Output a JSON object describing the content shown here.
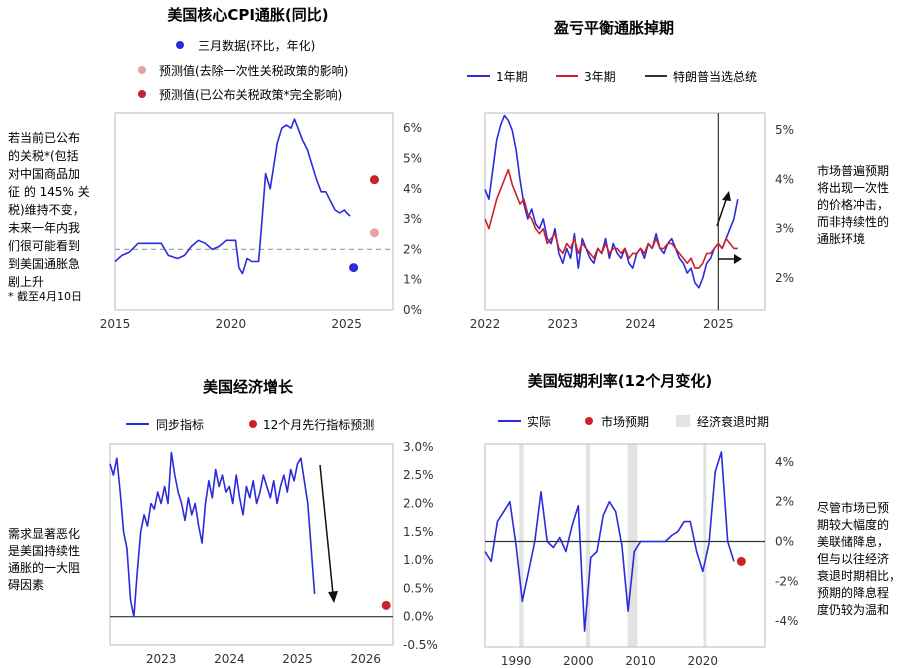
{
  "colors": {
    "blue": "#2b2bdb",
    "red": "#cc2229",
    "pink": "#e5a1a6",
    "gray": "#a6a6a6",
    "dark": "#333333",
    "shade": "#e3e3e3"
  },
  "chart_data": [
    {
      "type": "line",
      "title": "美国核心CPI通胀(同比)",
      "legend": [
        "三月数据(环比，年化)",
        "预测值(去除一次性关税政策的影响)",
        "预测值(已公布关税政策*完全影响)"
      ],
      "x_ticks": [
        "2015",
        "2020",
        "2025"
      ],
      "y_ticks": [
        "6%",
        "5%",
        "4%",
        "3%",
        "2%",
        "1%",
        "0%"
      ],
      "xlim": [
        2015,
        2027
      ],
      "ylim": [
        0,
        6.5
      ],
      "reference_line": 2.0,
      "series": [
        {
          "name": "美国核心CPI通胀(同比)",
          "x": [
            2015.0,
            2015.3,
            2015.6,
            2016.0,
            2016.4,
            2016.8,
            2017.0,
            2017.3,
            2017.7,
            2018.0,
            2018.3,
            2018.6,
            2018.9,
            2019.2,
            2019.5,
            2019.8,
            2020.0,
            2020.2,
            2020.35,
            2020.5,
            2020.7,
            2020.9,
            2021.0,
            2021.2,
            2021.35,
            2021.5,
            2021.7,
            2021.9,
            2022.0,
            2022.2,
            2022.4,
            2022.6,
            2022.75,
            2022.9,
            2023.1,
            2023.3,
            2023.5,
            2023.7,
            2023.9,
            2024.1,
            2024.3,
            2024.5,
            2024.7,
            2024.9,
            2025.0,
            2025.15
          ],
          "values": [
            1.6,
            1.8,
            1.9,
            2.2,
            2.2,
            2.2,
            2.2,
            1.8,
            1.7,
            1.8,
            2.1,
            2.3,
            2.2,
            2.0,
            2.1,
            2.3,
            2.3,
            2.3,
            1.4,
            1.2,
            1.7,
            1.6,
            1.6,
            1.6,
            3.0,
            4.5,
            4.0,
            5.0,
            5.5,
            6.0,
            6.1,
            6.0,
            6.3,
            6.0,
            5.6,
            5.3,
            4.8,
            4.3,
            3.9,
            3.9,
            3.6,
            3.3,
            3.2,
            3.3,
            3.2,
            3.1
          ]
        },
        {
          "name": "三月数据(环比，年化)",
          "x": [
            2025.3
          ],
          "values": [
            1.4
          ]
        },
        {
          "name": "预测值(去除一次性关税政策的影响)",
          "x": [
            2026.2
          ],
          "values": [
            2.55
          ]
        },
        {
          "name": "预测值(已公布关税政策*完全影响)",
          "x": [
            2026.2
          ],
          "values": [
            4.3
          ]
        }
      ]
    },
    {
      "type": "line",
      "title": "盈亏平衡通胀掉期",
      "legend": [
        "1年期",
        "3年期",
        "特朗普当选总统"
      ],
      "x_ticks": [
        "2022",
        "2023",
        "2024",
        "2025"
      ],
      "y_ticks": [
        "5%",
        "4%",
        "3%",
        "2%"
      ],
      "xlim": [
        2022,
        2025.6
      ],
      "ylim": [
        1.35,
        5.35
      ],
      "vline": 2025.0,
      "series": [
        {
          "name": "1年期",
          "x": [
            2022.0,
            2022.05,
            2022.1,
            2022.15,
            2022.2,
            2022.25,
            2022.3,
            2022.35,
            2022.4,
            2022.45,
            2022.5,
            2022.55,
            2022.6,
            2022.65,
            2022.7,
            2022.75,
            2022.8,
            2022.85,
            2022.9,
            2022.95,
            2023.0,
            2023.05,
            2023.1,
            2023.15,
            2023.2,
            2023.25,
            2023.3,
            2023.35,
            2023.4,
            2023.45,
            2023.5,
            2023.55,
            2023.6,
            2023.65,
            2023.7,
            2023.75,
            2023.8,
            2023.85,
            2023.9,
            2023.95,
            2024.0,
            2024.05,
            2024.1,
            2024.15,
            2024.2,
            2024.25,
            2024.3,
            2024.35,
            2024.4,
            2024.45,
            2024.5,
            2024.55,
            2024.6,
            2024.65,
            2024.7,
            2024.75,
            2024.8,
            2024.85,
            2024.9,
            2024.95,
            2025.0,
            2025.05,
            2025.1,
            2025.15,
            2025.2,
            2025.25
          ],
          "values": [
            3.8,
            3.6,
            4.2,
            4.8,
            5.1,
            5.3,
            5.2,
            5.0,
            4.6,
            4.0,
            3.5,
            3.2,
            3.4,
            3.1,
            3.0,
            3.2,
            2.8,
            2.7,
            3.0,
            2.5,
            2.3,
            2.6,
            2.4,
            2.9,
            2.2,
            2.8,
            2.6,
            2.4,
            2.3,
            2.6,
            2.5,
            2.8,
            2.4,
            2.7,
            2.5,
            2.4,
            2.6,
            2.3,
            2.2,
            2.5,
            2.6,
            2.4,
            2.7,
            2.6,
            2.9,
            2.6,
            2.5,
            2.7,
            2.8,
            2.6,
            2.4,
            2.3,
            2.1,
            2.2,
            1.9,
            1.8,
            2.0,
            2.3,
            2.4,
            2.6,
            2.7,
            2.6,
            2.8,
            3.0,
            3.2,
            3.6
          ]
        },
        {
          "name": "3年期",
          "x": [
            2022.0,
            2022.05,
            2022.1,
            2022.15,
            2022.2,
            2022.25,
            2022.3,
            2022.35,
            2022.4,
            2022.45,
            2022.5,
            2022.55,
            2022.6,
            2022.65,
            2022.7,
            2022.75,
            2022.8,
            2022.85,
            2022.9,
            2022.95,
            2023.0,
            2023.05,
            2023.1,
            2023.15,
            2023.2,
            2023.25,
            2023.3,
            2023.35,
            2023.4,
            2023.45,
            2023.5,
            2023.55,
            2023.6,
            2023.65,
            2023.7,
            2023.75,
            2023.8,
            2023.85,
            2023.9,
            2023.95,
            2024.0,
            2024.05,
            2024.1,
            2024.15,
            2024.2,
            2024.25,
            2024.3,
            2024.35,
            2024.4,
            2024.45,
            2024.5,
            2024.55,
            2024.6,
            2024.65,
            2024.7,
            2024.75,
            2024.8,
            2024.85,
            2024.9,
            2024.95,
            2025.0,
            2025.05,
            2025.1,
            2025.15,
            2025.2,
            2025.25
          ],
          "values": [
            3.2,
            3.0,
            3.3,
            3.6,
            3.8,
            4.0,
            4.2,
            3.9,
            3.7,
            3.5,
            3.6,
            3.3,
            3.2,
            3.0,
            2.9,
            3.0,
            2.7,
            2.8,
            2.9,
            2.6,
            2.5,
            2.7,
            2.6,
            2.8,
            2.5,
            2.7,
            2.6,
            2.5,
            2.4,
            2.6,
            2.5,
            2.7,
            2.5,
            2.6,
            2.6,
            2.5,
            2.6,
            2.4,
            2.5,
            2.5,
            2.6,
            2.5,
            2.7,
            2.6,
            2.8,
            2.6,
            2.6,
            2.7,
            2.7,
            2.6,
            2.5,
            2.4,
            2.3,
            2.4,
            2.2,
            2.2,
            2.3,
            2.5,
            2.5,
            2.6,
            2.7,
            2.6,
            2.8,
            2.7,
            2.6,
            2.6
          ]
        }
      ]
    },
    {
      "type": "line",
      "title": "美国经济增长",
      "legend": [
        "同步指标",
        "12个月先行指标预测"
      ],
      "x_ticks": [
        "2023",
        "2024",
        "2025",
        "2026"
      ],
      "y_ticks": [
        "3.0%",
        "2.5%",
        "2.0%",
        "1.5%",
        "1.0%",
        "0.5%",
        "0.0%",
        "-0.5%"
      ],
      "xlim": [
        2022.25,
        2026.4
      ],
      "ylim": [
        -0.5,
        3.05
      ],
      "reference_line": 0.0,
      "series": [
        {
          "name": "同步指标",
          "x": [
            2022.25,
            2022.3,
            2022.35,
            2022.4,
            2022.45,
            2022.5,
            2022.55,
            2022.6,
            2022.65,
            2022.7,
            2022.75,
            2022.8,
            2022.85,
            2022.9,
            2022.95,
            2023.0,
            2023.05,
            2023.1,
            2023.15,
            2023.2,
            2023.25,
            2023.3,
            2023.35,
            2023.4,
            2023.45,
            2023.5,
            2023.55,
            2023.6,
            2023.65,
            2023.7,
            2023.75,
            2023.8,
            2023.85,
            2023.9,
            2023.95,
            2024.0,
            2024.05,
            2024.1,
            2024.15,
            2024.2,
            2024.25,
            2024.3,
            2024.35,
            2024.4,
            2024.45,
            2024.5,
            2024.55,
            2024.6,
            2024.65,
            2024.7,
            2024.75,
            2024.8,
            2024.85,
            2024.9,
            2024.95,
            2025.0,
            2025.05,
            2025.1,
            2025.15,
            2025.2,
            2025.25
          ],
          "values": [
            2.7,
            2.5,
            2.8,
            2.2,
            1.5,
            1.2,
            0.3,
            0.0,
            0.8,
            1.5,
            1.8,
            1.6,
            2.0,
            1.9,
            2.2,
            2.0,
            2.3,
            2.0,
            2.9,
            2.5,
            2.2,
            2.0,
            1.7,
            2.1,
            1.8,
            2.0,
            1.6,
            1.3,
            2.0,
            2.4,
            2.1,
            2.6,
            2.3,
            2.5,
            2.2,
            2.3,
            2.0,
            2.5,
            2.1,
            1.8,
            2.3,
            2.1,
            2.4,
            2.0,
            2.2,
            2.5,
            2.3,
            2.1,
            2.4,
            2.0,
            2.3,
            2.5,
            2.2,
            2.6,
            2.4,
            2.7,
            2.8,
            2.4,
            2.0,
            1.2,
            0.4
          ]
        },
        {
          "name": "12个月先行指标预测",
          "x": [
            2026.3
          ],
          "values": [
            0.2
          ]
        }
      ]
    },
    {
      "type": "line",
      "title": "美国短期利率(12个月变化)",
      "legend": [
        "实际",
        "市场预期",
        "经济衰退时期"
      ],
      "x_ticks": [
        "1990",
        "2000",
        "2010",
        "2020"
      ],
      "y_ticks": [
        "4%",
        "2%",
        "0%",
        "-2%",
        "-4%"
      ],
      "xlim": [
        1985,
        2030
      ],
      "ylim": [
        -5.3,
        4.9
      ],
      "reference_line": 0.0,
      "recessions": [
        [
          1990.5,
          1991.2
        ],
        [
          2001.2,
          2001.9
        ],
        [
          2007.9,
          2009.5
        ],
        [
          2020.1,
          2020.5
        ]
      ],
      "series": [
        {
          "name": "实际",
          "x": [
            1985,
            1986,
            1987,
            1988,
            1989,
            1990,
            1991,
            1992,
            1993,
            1994,
            1995,
            1996,
            1997,
            1998,
            1999,
            2000,
            2001,
            2002,
            2003,
            2004,
            2005,
            2006,
            2007,
            2008,
            2009,
            2010,
            2011,
            2012,
            2013,
            2014,
            2015,
            2016,
            2017,
            2018,
            2019,
            2020,
            2021,
            2022,
            2023,
            2024,
            2025
          ],
          "values": [
            -0.5,
            -1.0,
            1.0,
            1.5,
            2.0,
            -0.2,
            -3.0,
            -1.5,
            0.0,
            2.5,
            0.0,
            -0.3,
            0.2,
            -0.5,
            0.8,
            1.8,
            -4.5,
            -0.8,
            -0.5,
            1.3,
            2.0,
            1.5,
            -0.2,
            -3.5,
            -0.5,
            0.0,
            0.0,
            0.0,
            0.0,
            0.0,
            0.3,
            0.5,
            1.0,
            1.0,
            -0.5,
            -1.5,
            -0.1,
            3.5,
            4.5,
            0.0,
            -1.0
          ]
        },
        {
          "name": "市场预期",
          "x": [
            2026.2
          ],
          "values": [
            -1.0
          ]
        }
      ]
    }
  ],
  "annotations": {
    "cpi_note": [
      "若当前已公布",
      "的关税*(包括",
      "对中国商品加",
      "征 的 145% 关",
      "税)维持不变，",
      "未来一年内我",
      "们很可能看到",
      "到美国通胀急",
      "剧上升"
    ],
    "cpi_footnote": "* 截至4月10日",
    "swap_note": [
      "市场普遍预期",
      "将出现一次性",
      "的价格冲击，",
      "而非持续性的",
      "通胀环境"
    ],
    "growth_note": [
      "需求显著恶化",
      "是美国持续性",
      "通胀的一大阻",
      "碍因素"
    ],
    "rates_note": [
      "尽管市场已预",
      "期较大幅度的",
      "美联储降息，",
      "但与以往经济",
      "衰退时期相比，",
      "预期的降息程",
      "度仍较为温和"
    ]
  }
}
